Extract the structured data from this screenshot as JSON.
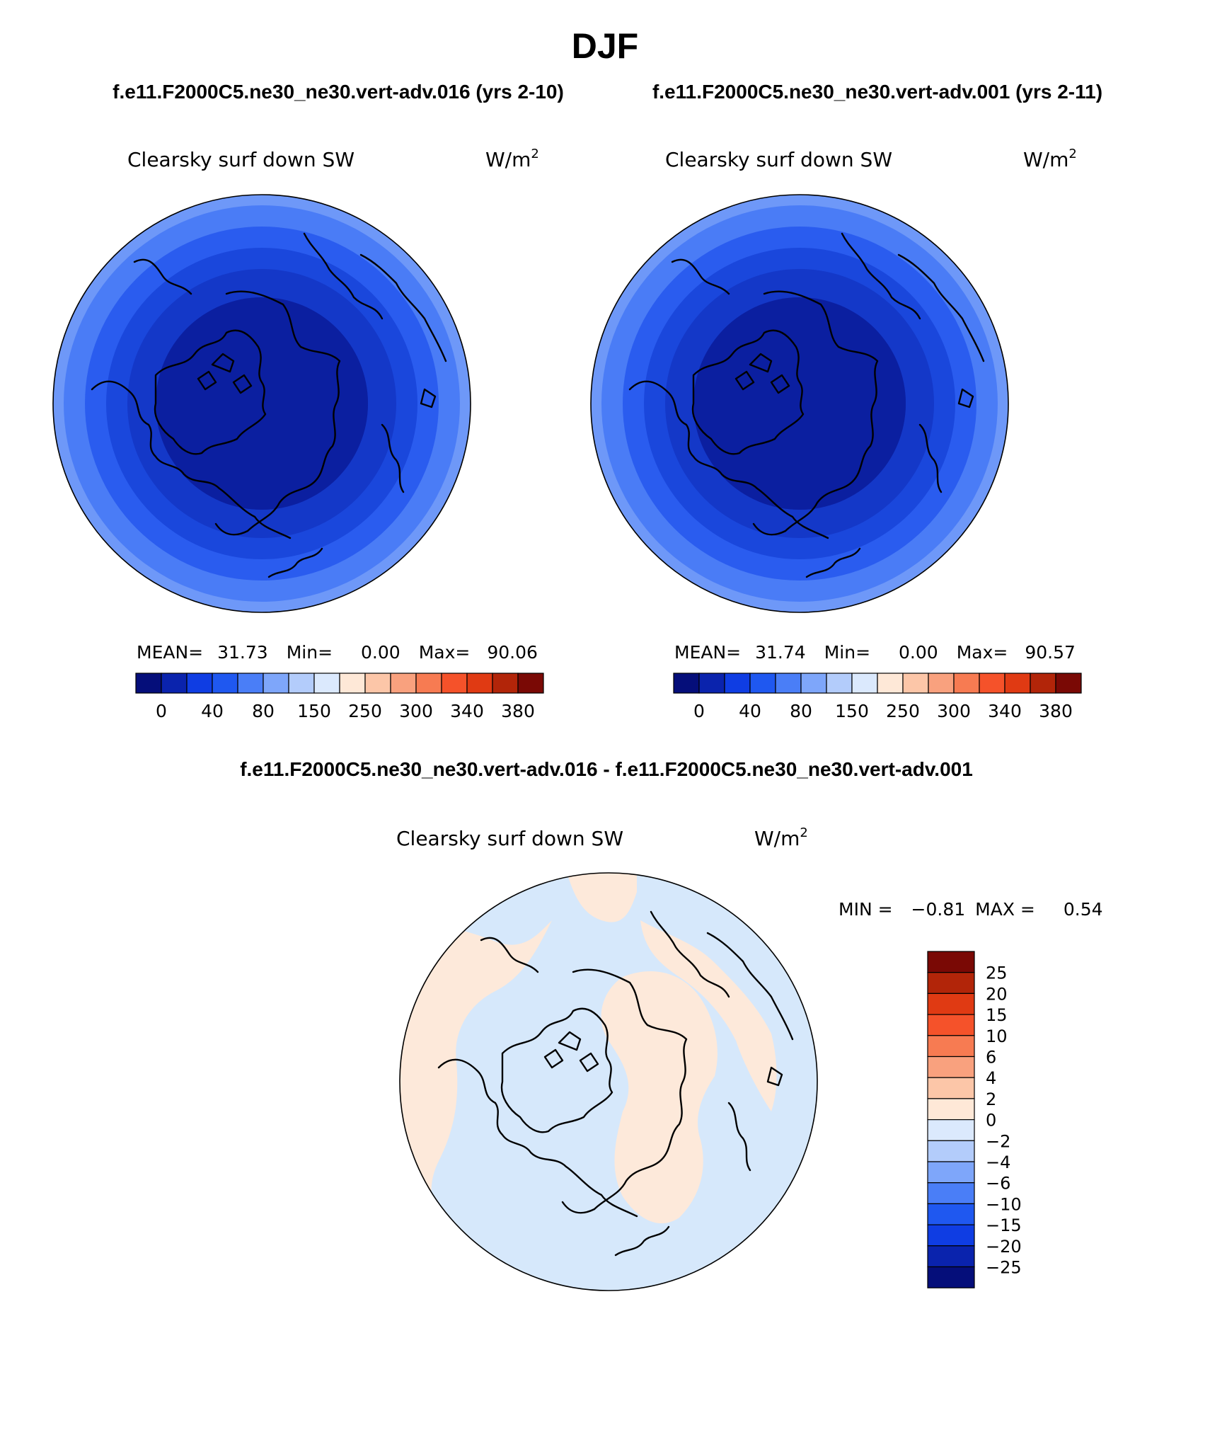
{
  "figure": {
    "title": "DJF",
    "subtitle_left": "f.e11.F2000C5.ne30_ne30.vert-adv.016 (yrs 2-10)",
    "subtitle_right": "f.e11.F2000C5.ne30_ne30.vert-adv.001 (yrs 2-11)",
    "diff_title": "f.e11.F2000C5.ne30_ne30.vert-adv.016 - f.e11.F2000C5.ne30_ne30.vert-adv.001"
  },
  "panels": [
    {
      "variable": "Clearsky surf down SW",
      "units_base": "W/m",
      "units_exp": "2",
      "stats": {
        "mean_label": "MEAN=",
        "mean": "31.73",
        "min_label": "Min=",
        "min": "0.00",
        "max_label": "Max=",
        "max": "90.06"
      }
    },
    {
      "variable": "Clearsky surf down SW",
      "units_base": "W/m",
      "units_exp": "2",
      "stats": {
        "mean_label": "MEAN=",
        "mean": "31.74",
        "min_label": "Min=",
        "min": "0.00",
        "max_label": "Max=",
        "max": "90.57"
      }
    },
    {
      "variable": "Clearsky surf down SW",
      "units_base": "W/m",
      "units_exp": "2",
      "stats": {
        "min_label": "MIN =",
        "min": "−0.81",
        "max_label": "MAX =",
        "max": "0.54"
      }
    }
  ],
  "abs_colorbar": {
    "colors": [
      "#050e7a",
      "#0a23ad",
      "#0f3de3",
      "#1f58f0",
      "#4a7ef7",
      "#7ea6fa",
      "#b3ccfb",
      "#dbe9fd",
      "#fee8d7",
      "#fcc6a8",
      "#f9a17e",
      "#f77b52",
      "#f5522a",
      "#e03a13",
      "#b22509",
      "#7a0905"
    ],
    "labels": [
      "0",
      "40",
      "80",
      "150",
      "250",
      "300",
      "340",
      "380"
    ]
  },
  "diff_colorbar": {
    "colors": [
      "#050e7a",
      "#0a23ad",
      "#0f3de3",
      "#1f58f0",
      "#4a7ef7",
      "#7ea6fa",
      "#b3ccfb",
      "#dbe9fd",
      "#fee8d7",
      "#fcc6a8",
      "#f9a17e",
      "#f77b52",
      "#f5522a",
      "#e03a13",
      "#b22509",
      "#7a0905"
    ],
    "labels": [
      "25",
      "20",
      "15",
      "10",
      "6",
      "4",
      "2",
      "0",
      "−2",
      "−4",
      "−6",
      "−10",
      "−15",
      "−20",
      "−25"
    ]
  },
  "map_colors": {
    "abs_bands": [
      "#0f2bb4",
      "#1438c8",
      "#1a47dc",
      "#2a5cef",
      "#4a7cf6",
      "#6e98f8"
    ],
    "diff_positive": "#fde9da",
    "diff_negative": "#d6e8fb"
  }
}
